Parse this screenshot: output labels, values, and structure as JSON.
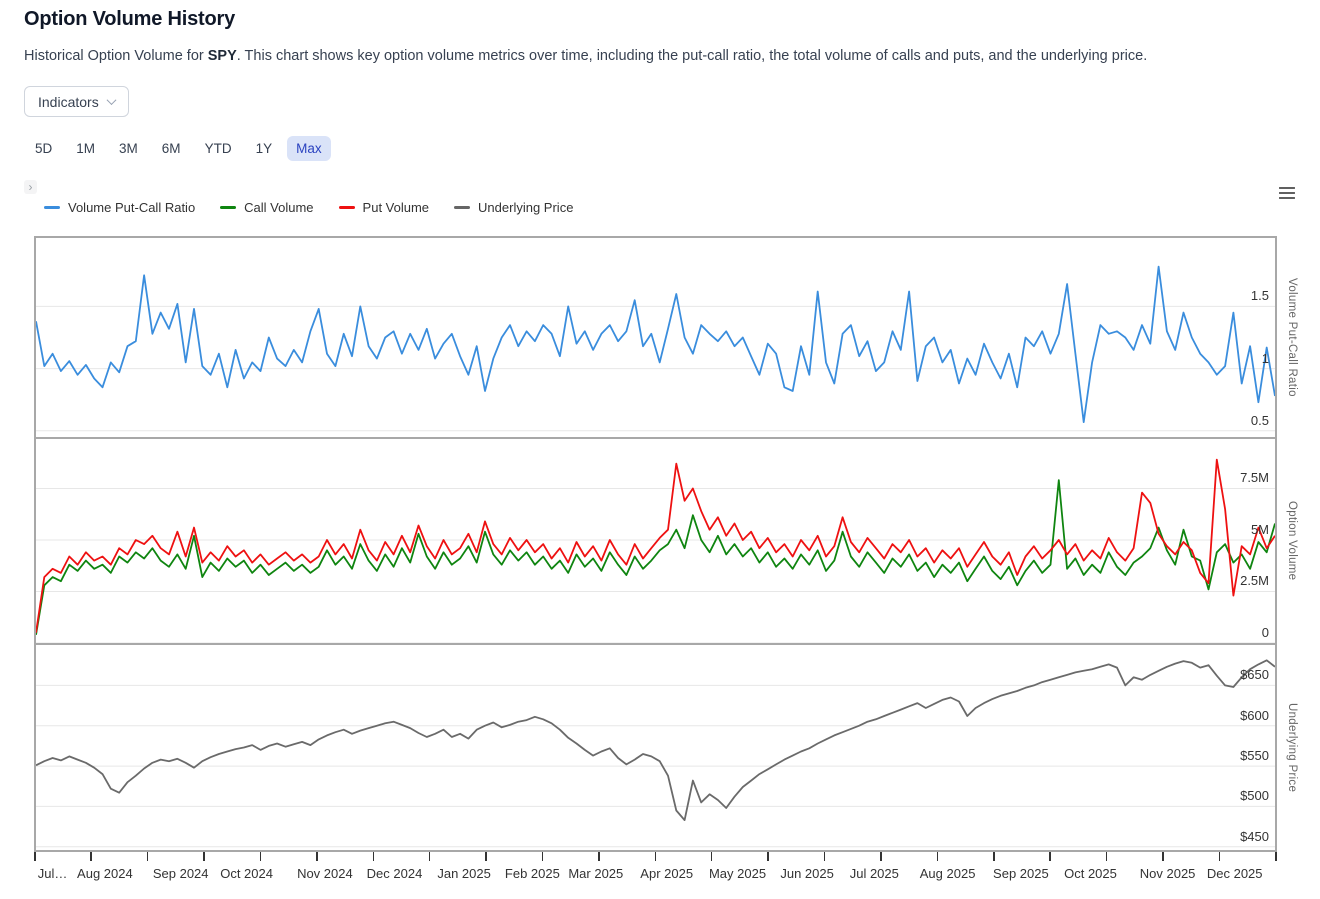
{
  "page": {
    "title": "Option Volume History",
    "description_prefix": "Historical Option Volume for ",
    "ticker": "SPY",
    "description_suffix": ". This chart shows key option volume metrics over time, including the put-call ratio, the total volume of calls and puts, and the underlying price."
  },
  "controls": {
    "indicators_label": "Indicators",
    "ranges": [
      "5D",
      "1M",
      "3M",
      "6M",
      "YTD",
      "1Y",
      "Max"
    ],
    "active_range": "Max",
    "expander_glyph": "›"
  },
  "legend": [
    {
      "label": "Volume Put-Call Ratio",
      "color": "#3a8ddd"
    },
    {
      "label": "Call Volume",
      "color": "#0f8510"
    },
    {
      "label": "Put Volume",
      "color": "#ee1111"
    },
    {
      "label": "Underlying Price",
      "color": "#666666"
    }
  ],
  "chart_data": {
    "type": "line",
    "title": "Option Volume History",
    "legend_position": "top-left",
    "grid": true,
    "x_minor_tick_count": 22,
    "x_ticks": [
      {
        "label": "Jul…",
        "pos": 0.015
      },
      {
        "label": "Aug 2024",
        "pos": 0.057
      },
      {
        "label": "Sep 2024",
        "pos": 0.118
      },
      {
        "label": "Oct 2024",
        "pos": 0.171
      },
      {
        "label": "Nov 2024",
        "pos": 0.234
      },
      {
        "label": "Dec 2024",
        "pos": 0.29
      },
      {
        "label": "Jan 2025",
        "pos": 0.346
      },
      {
        "label": "Feb 2025",
        "pos": 0.401
      },
      {
        "label": "Mar 2025",
        "pos": 0.452
      },
      {
        "label": "Apr 2025",
        "pos": 0.509
      },
      {
        "label": "May 2025",
        "pos": 0.566
      },
      {
        "label": "Jun 2025",
        "pos": 0.622
      },
      {
        "label": "Jul 2025",
        "pos": 0.676
      },
      {
        "label": "Aug 2025",
        "pos": 0.735
      },
      {
        "label": "Sep 2025",
        "pos": 0.794
      },
      {
        "label": "Oct 2025",
        "pos": 0.85
      },
      {
        "label": "Nov 2025",
        "pos": 0.912
      },
      {
        "label": "Dec 2025",
        "pos": 0.966
      }
    ],
    "panes": [
      {
        "name": "put-call-ratio",
        "axis_title": "Volume Put-Call Ratio",
        "ylim": [
          0.45,
          2.05
        ],
        "y_ticks": [
          {
            "label": "1.5",
            "value": 1.5
          },
          {
            "label": "1",
            "value": 1.0
          },
          {
            "label": "0.5",
            "value": 0.5
          }
        ],
        "series": [
          {
            "name": "Volume Put-Call Ratio",
            "color": "#3a8ddd",
            "values": [
              1.38,
              1.02,
              1.12,
              0.98,
              1.06,
              0.95,
              1.03,
              0.92,
              0.85,
              1.05,
              0.97,
              1.18,
              1.22,
              1.75,
              1.28,
              1.45,
              1.32,
              1.52,
              1.05,
              1.48,
              1.02,
              0.95,
              1.12,
              0.85,
              1.15,
              0.92,
              1.05,
              0.98,
              1.25,
              1.08,
              1.02,
              1.15,
              1.05,
              1.3,
              1.48,
              1.12,
              1.02,
              1.28,
              1.1,
              1.5,
              1.18,
              1.08,
              1.25,
              1.3,
              1.12,
              1.28,
              1.15,
              1.32,
              1.08,
              1.2,
              1.28,
              1.1,
              0.95,
              1.18,
              0.82,
              1.08,
              1.25,
              1.35,
              1.18,
              1.3,
              1.22,
              1.35,
              1.28,
              1.1,
              1.5,
              1.2,
              1.3,
              1.15,
              1.28,
              1.35,
              1.22,
              1.3,
              1.55,
              1.18,
              1.28,
              1.05,
              1.32,
              1.6,
              1.25,
              1.12,
              1.35,
              1.28,
              1.22,
              1.3,
              1.18,
              1.25,
              1.1,
              0.95,
              1.2,
              1.12,
              0.85,
              0.82,
              1.18,
              0.95,
              1.62,
              1.05,
              0.88,
              1.28,
              1.35,
              1.1,
              1.22,
              0.98,
              1.05,
              1.3,
              1.15,
              1.62,
              0.9,
              1.18,
              1.25,
              1.05,
              1.15,
              0.88,
              1.08,
              0.95,
              1.2,
              1.05,
              0.92,
              1.12,
              0.85,
              1.25,
              1.18,
              1.3,
              1.12,
              1.28,
              1.68,
              1.12,
              0.57,
              1.05,
              1.35,
              1.28,
              1.3,
              1.25,
              1.15,
              1.35,
              1.2,
              1.82,
              1.3,
              1.15,
              1.45,
              1.25,
              1.12,
              1.05,
              0.95,
              1.02,
              1.45,
              0.88,
              1.18,
              0.73,
              1.17,
              0.78
            ]
          }
        ]
      },
      {
        "name": "option-volume",
        "axis_title": "Option Volume",
        "ylim": [
          0,
          9.9
        ],
        "unit": "millions of contracts",
        "y_ticks": [
          {
            "label": "7.5M",
            "value": 7.5
          },
          {
            "label": "5M",
            "value": 5.0
          },
          {
            "label": "2.5M",
            "value": 2.5
          },
          {
            "label": "0",
            "value": 0
          }
        ],
        "series": [
          {
            "name": "Call Volume",
            "color": "#0f8510",
            "values": [
              0.4,
              2.8,
              3.2,
              3.0,
              3.8,
              3.5,
              4.0,
              3.6,
              3.8,
              3.4,
              4.2,
              3.9,
              4.4,
              4.1,
              4.6,
              4.0,
              3.7,
              4.3,
              3.6,
              5.2,
              3.2,
              3.9,
              3.5,
              4.1,
              3.7,
              4.0,
              3.4,
              3.8,
              3.3,
              3.6,
              3.9,
              3.5,
              3.8,
              3.4,
              3.7,
              4.5,
              3.8,
              4.2,
              3.6,
              4.8,
              4.0,
              3.5,
              4.3,
              3.7,
              4.6,
              3.9,
              5.3,
              4.2,
              3.6,
              4.4,
              3.8,
              4.1,
              4.7,
              3.9,
              5.4,
              4.3,
              3.8,
              4.5,
              4.0,
              4.4,
              3.8,
              4.2,
              3.6,
              4.0,
              3.4,
              4.3,
              3.7,
              4.1,
              3.5,
              4.4,
              3.8,
              3.3,
              4.2,
              3.6,
              4.0,
              4.5,
              4.8,
              5.5,
              4.6,
              6.2,
              5.0,
              4.4,
              5.2,
              4.3,
              4.8,
              4.2,
              4.6,
              3.9,
              4.4,
              3.7,
              4.1,
              3.6,
              4.3,
              3.8,
              4.5,
              3.5,
              4.0,
              5.4,
              4.2,
              3.7,
              4.4,
              3.9,
              3.4,
              4.1,
              3.7,
              4.3,
              3.5,
              3.9,
              3.2,
              3.8,
              3.4,
              3.9,
              3.0,
              3.6,
              4.2,
              3.5,
              3.1,
              3.7,
              2.8,
              3.5,
              4.0,
              3.4,
              3.8,
              7.9,
              3.6,
              4.1,
              3.3,
              3.8,
              3.4,
              4.4,
              3.7,
              3.3,
              3.9,
              4.2,
              4.6,
              5.6,
              4.5,
              3.8,
              5.5,
              4.2,
              4.0,
              2.6,
              4.4,
              4.8,
              3.9,
              4.3,
              3.6,
              4.9,
              4.4,
              5.8
            ]
          },
          {
            "name": "Put Volume",
            "color": "#ee1111",
            "values": [
              0.5,
              3.2,
              3.6,
              3.4,
              4.2,
              3.8,
              4.4,
              4.0,
              4.2,
              3.8,
              4.6,
              4.3,
              5.0,
              4.8,
              5.2,
              4.6,
              4.3,
              5.4,
              4.2,
              5.6,
              3.9,
              4.4,
              4.0,
              4.7,
              4.2,
              4.5,
              3.9,
              4.3,
              3.8,
              4.1,
              4.4,
              4.0,
              4.3,
              3.9,
              4.2,
              5.0,
              4.3,
              4.8,
              4.1,
              5.5,
              4.5,
              4.0,
              4.9,
              4.3,
              5.2,
              4.4,
              5.7,
              4.7,
              4.1,
              5.0,
              4.3,
              4.6,
              5.3,
              4.4,
              5.9,
              4.8,
              4.3,
              5.1,
              4.5,
              5.0,
              4.4,
              4.8,
              4.1,
              4.6,
              3.9,
              4.9,
              4.2,
              4.7,
              4.0,
              5.0,
              4.3,
              3.8,
              4.8,
              4.1,
              4.6,
              5.1,
              5.5,
              8.7,
              6.9,
              7.5,
              6.4,
              5.5,
              6.1,
              5.2,
              5.8,
              5.0,
              5.4,
              4.6,
              5.1,
              4.4,
              4.8,
              4.2,
              5.0,
              4.5,
              5.2,
              4.2,
              4.7,
              6.1,
              4.9,
              4.4,
              5.1,
              4.6,
              4.1,
              4.8,
              4.4,
              5.0,
              4.2,
              4.6,
              3.9,
              4.5,
              4.1,
              4.6,
              3.7,
              4.3,
              4.9,
              4.2,
              3.8,
              4.4,
              3.3,
              4.2,
              4.7,
              4.1,
              4.5,
              5.0,
              4.3,
              4.8,
              4.0,
              4.5,
              4.1,
              5.1,
              4.4,
              4.0,
              4.6,
              7.3,
              6.8,
              5.3,
              4.7,
              4.3,
              4.9,
              4.5,
              3.4,
              2.9,
              8.9,
              6.5,
              2.3,
              4.7,
              4.3,
              5.6,
              4.6,
              5.2
            ]
          }
        ]
      },
      {
        "name": "underlying-price",
        "axis_title": "Underlying Price",
        "ylim": [
          446,
          700
        ],
        "unit": "USD",
        "y_ticks": [
          {
            "label": "$650",
            "value": 650
          },
          {
            "label": "$600",
            "value": 600
          },
          {
            "label": "$550",
            "value": 550
          },
          {
            "label": "$500",
            "value": 500
          },
          {
            "label": "$450",
            "value": 450
          }
        ],
        "series": [
          {
            "name": "Underlying Price",
            "color": "#6a6a6a",
            "values": [
              551,
              556,
              560,
              557,
              562,
              558,
              554,
              548,
              540,
              522,
              517,
              530,
              538,
              547,
              554,
              558,
              556,
              559,
              554,
              548,
              556,
              561,
              565,
              568,
              571,
              573,
              576,
              570,
              575,
              578,
              574,
              577,
              580,
              576,
              583,
              588,
              592,
              595,
              590,
              594,
              597,
              600,
              603,
              605,
              601,
              597,
              591,
              586,
              590,
              595,
              586,
              590,
              584,
              595,
              600,
              604,
              598,
              601,
              605,
              607,
              611,
              608,
              603,
              595,
              585,
              578,
              570,
              563,
              568,
              572,
              560,
              552,
              558,
              565,
              562,
              556,
              538,
              495,
              483,
              532,
              505,
              515,
              508,
              498,
              512,
              524,
              532,
              540,
              546,
              552,
              558,
              563,
              568,
              572,
              578,
              583,
              588,
              592,
              596,
              600,
              605,
              608,
              612,
              616,
              620,
              624,
              628,
              622,
              627,
              632,
              635,
              630,
              612,
              622,
              628,
              633,
              637,
              640,
              643,
              647,
              650,
              654,
              657,
              660,
              663,
              666,
              668,
              670,
              673,
              676,
              672,
              650,
              660,
              657,
              663,
              668,
              673,
              677,
              680,
              678,
              672,
              675,
              662,
              650,
              648,
              660,
              670,
              676,
              681,
              673
            ]
          }
        ]
      }
    ]
  }
}
